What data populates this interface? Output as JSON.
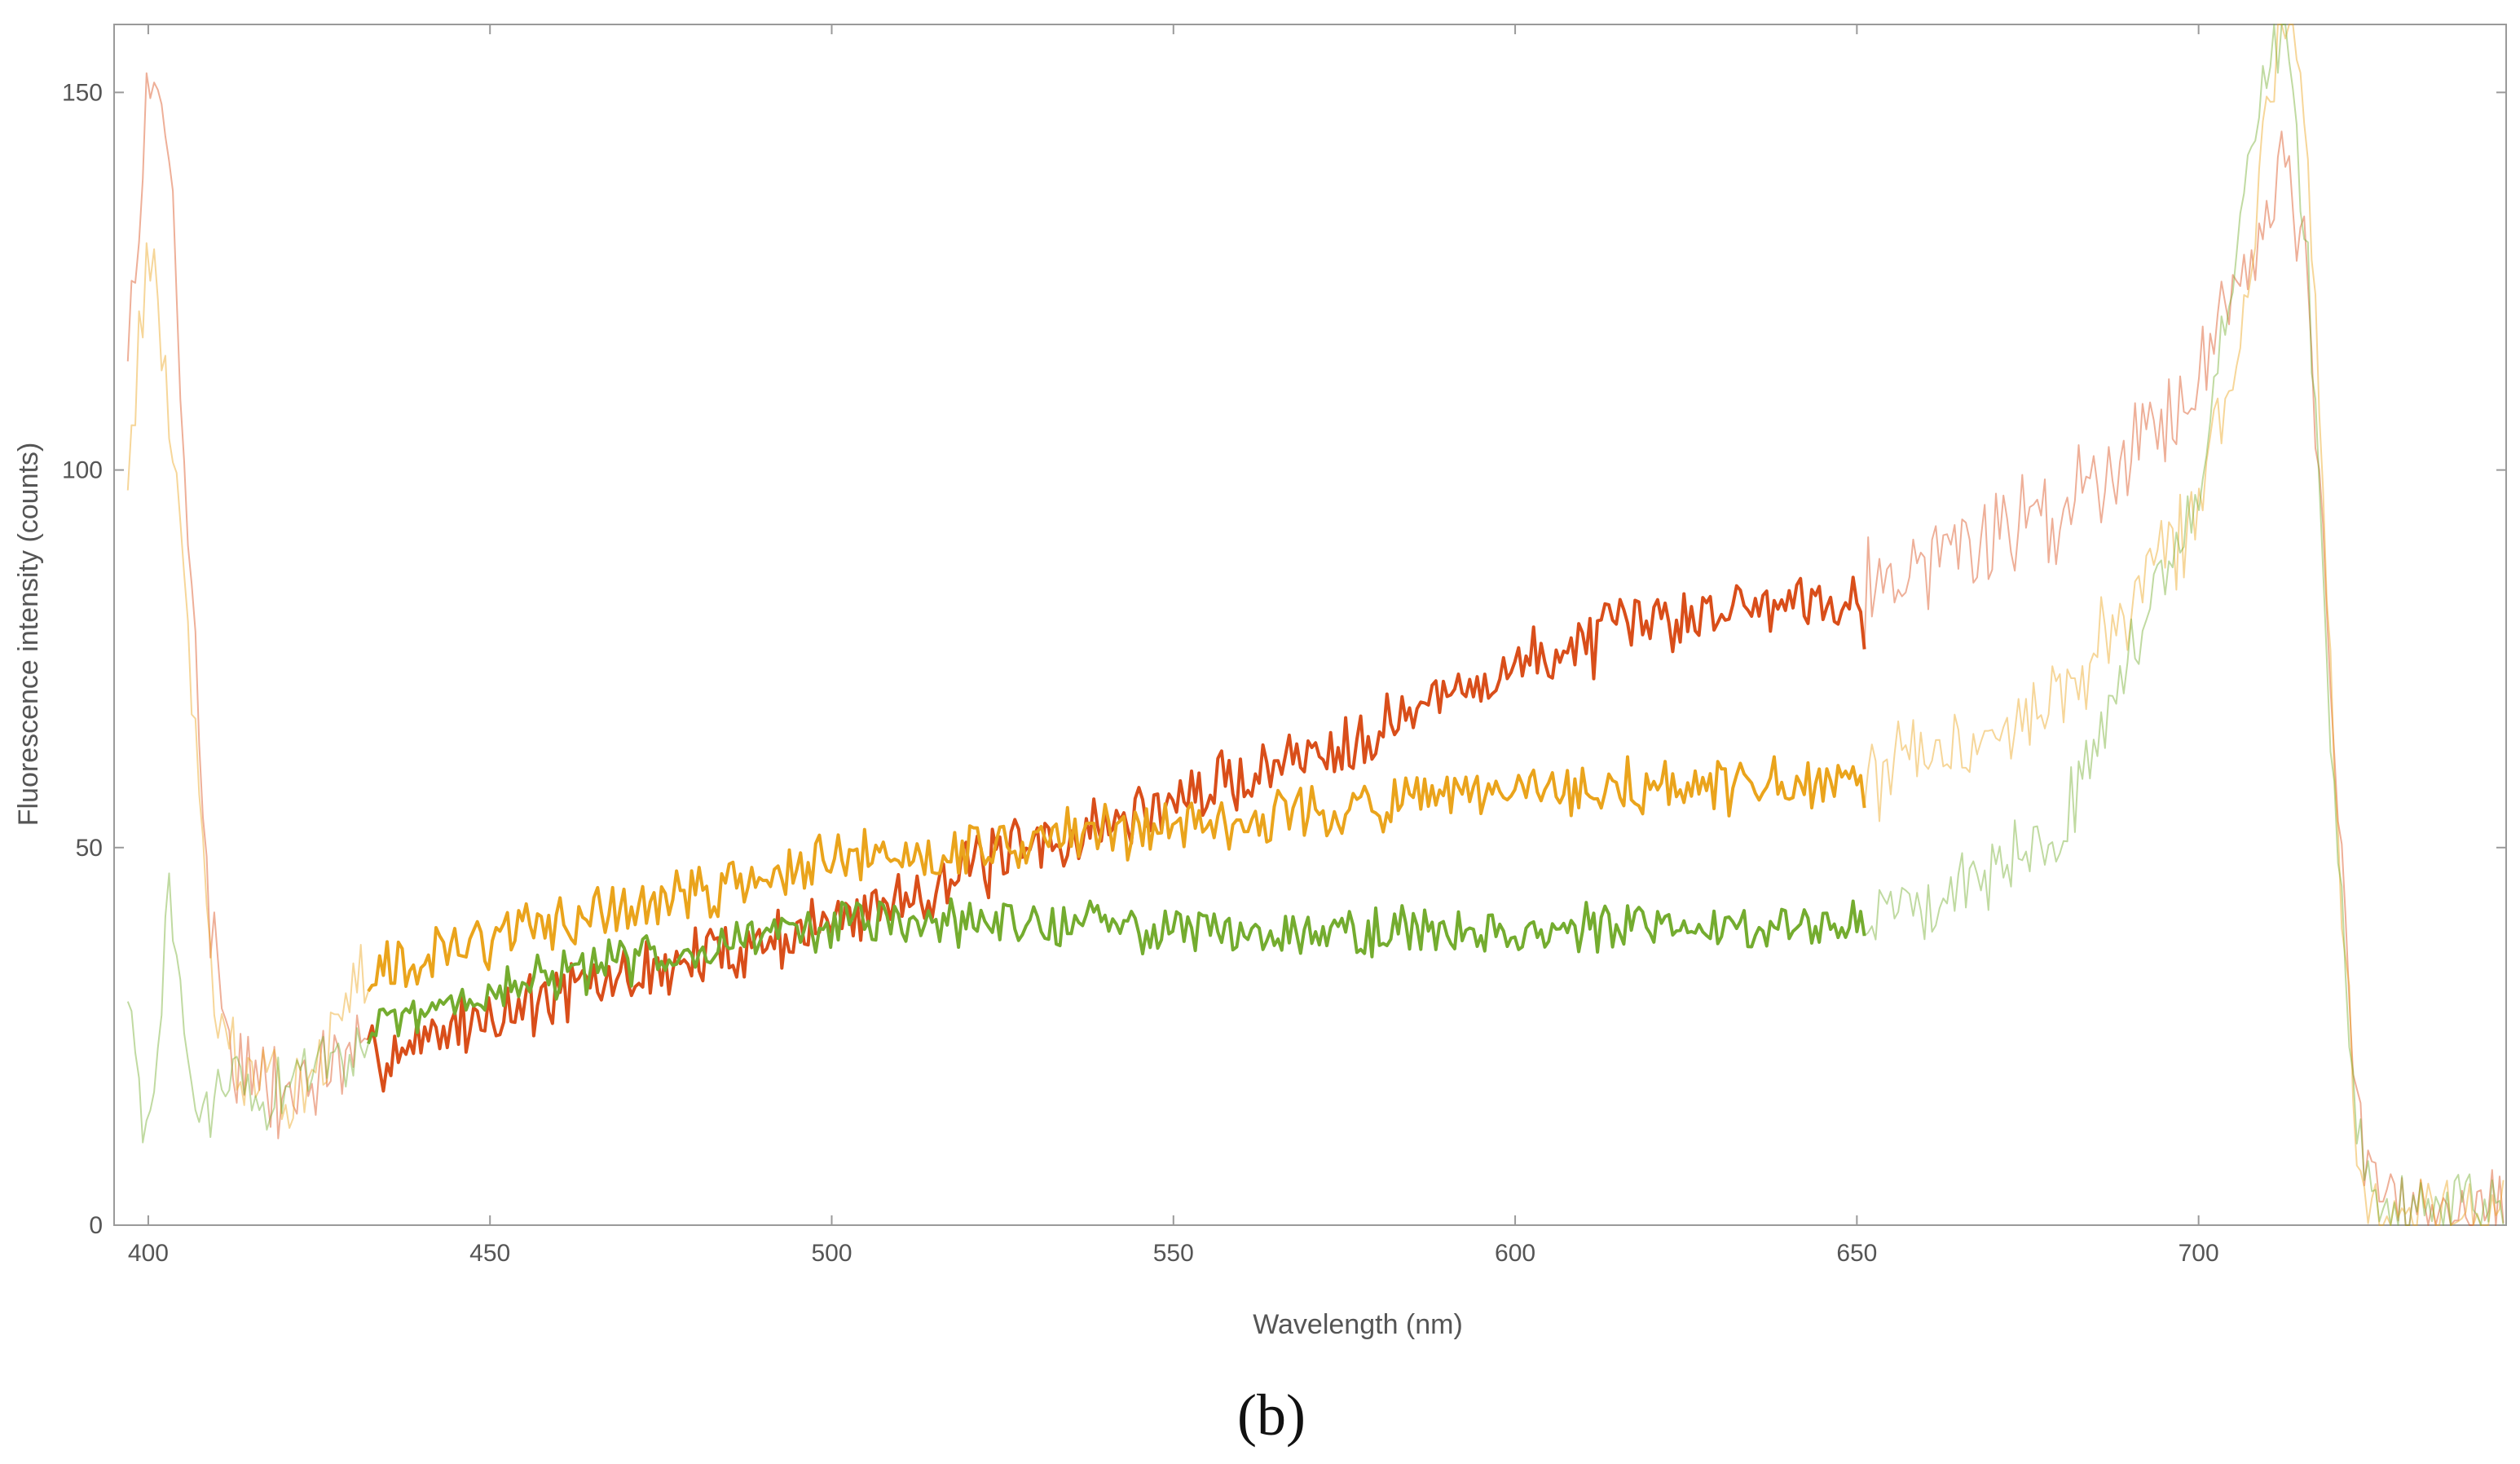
{
  "chart_data": {
    "type": "line",
    "xlabel": "Wavelength (nm)",
    "ylabel": "Fluorescence intensity (counts)",
    "panel_label": "(b)",
    "xlim": [
      395,
      745
    ],
    "ylim": [
      0,
      159
    ],
    "x_ticks": [
      400,
      450,
      500,
      550,
      600,
      650,
      700
    ],
    "y_ticks": [
      0,
      50,
      100,
      150
    ],
    "grid": false,
    "legend": "none",
    "highlight_range": [
      432,
      651
    ],
    "series": [
      {
        "color": "#d94e1a",
        "seed": 7,
        "noise": 3.5,
        "x": [
          397,
          400,
          403,
          406,
          409,
          412,
          416,
          420,
          425,
          432,
          450,
          500,
          520,
          550,
          580,
          600,
          620,
          640,
          651,
          660,
          680,
          700,
          708,
          712,
          716,
          720,
          723,
          726,
          745
        ],
        "y": [
          115,
          150,
          145,
          90,
          40,
          24,
          18,
          17,
          20,
          22,
          28,
          40,
          47,
          56,
          66,
          74,
          80,
          83,
          84,
          88,
          95,
          112,
          130,
          143,
          125,
          60,
          15,
          3,
          2
        ]
      },
      {
        "color": "#eaa41c",
        "seed": 13,
        "noise": 3.0,
        "x": [
          397,
          400,
          403,
          406,
          409,
          412,
          416,
          420,
          425,
          432,
          450,
          480,
          500,
          530,
          560,
          600,
          620,
          651,
          660,
          680,
          700,
          707,
          710,
          713,
          716,
          720,
          723,
          726,
          745
        ],
        "y": [
          100,
          130,
          110,
          75,
          35,
          22,
          17,
          18,
          22,
          33,
          38,
          44,
          48,
          51,
          54,
          57,
          58,
          58,
          62,
          70,
          95,
          120,
          150,
          159,
          145,
          60,
          12,
          3,
          2
        ]
      },
      {
        "color": "#74ac2f",
        "seed": 29,
        "noise": 2.5,
        "x": [
          397,
          400,
          403,
          406,
          409,
          412,
          416,
          420,
          425,
          432,
          450,
          480,
          500,
          530,
          560,
          600,
          651,
          660,
          680,
          700,
          706,
          710,
          713,
          716,
          720,
          723,
          726,
          745
        ],
        "y": [
          30,
          8,
          45,
          20,
          12,
          22,
          15,
          18,
          22,
          25,
          31,
          37,
          40,
          40,
          39,
          39,
          40,
          43,
          53,
          98,
          130,
          155,
          159,
          125,
          55,
          12,
          3,
          2
        ]
      }
    ]
  }
}
